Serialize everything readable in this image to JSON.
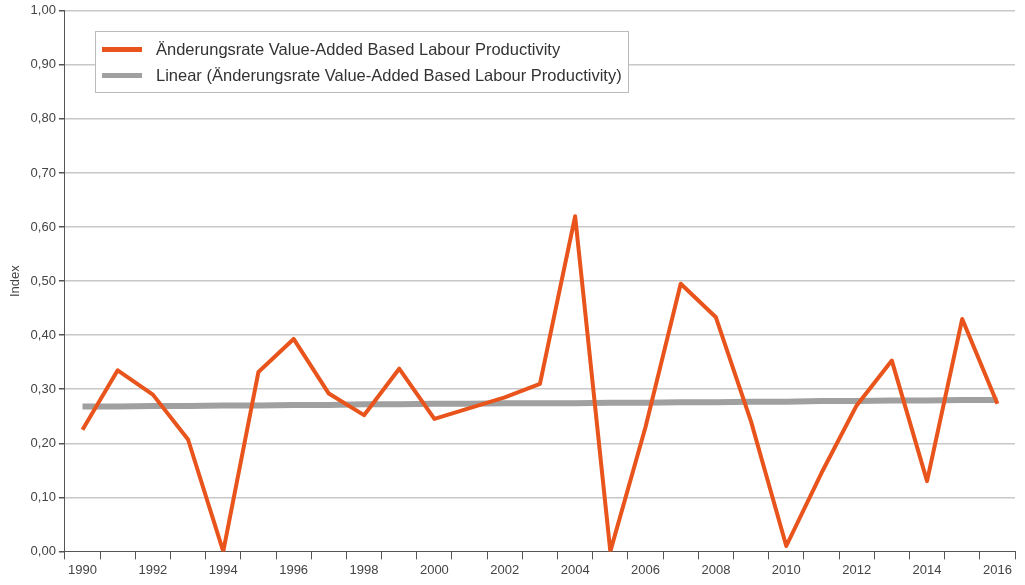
{
  "chart_data": {
    "type": "line",
    "ylabel": "Index",
    "categories": [
      "1990",
      null,
      "1992",
      null,
      "1994",
      null,
      "1996",
      null,
      "1998",
      null,
      "2000",
      null,
      "2002",
      null,
      "2004",
      null,
      "2006",
      null,
      "2008",
      null,
      "2010",
      null,
      "2012",
      null,
      "2014",
      null,
      "2016"
    ],
    "series": [
      {
        "name": "Änderungsrate Value-Added Based Labour Productivity",
        "color": "#e8541b",
        "values": [
          0.225,
          0.335,
          0.29,
          0.207,
          0.0,
          0.332,
          0.393,
          0.292,
          0.252,
          0.338,
          0.245,
          0.265,
          0.285,
          0.31,
          0.62,
          0.0,
          0.23,
          0.495,
          0.433,
          0.24,
          0.01,
          0.145,
          0.27,
          0.353,
          0.13,
          0.43,
          0.273
        ]
      },
      {
        "name": "Linear (Änderungsrate Value-Added Based Labour Productivity)",
        "color": "#a0a0a0",
        "type": "line",
        "values": [
          0.268,
          0.268,
          0.269,
          0.269,
          0.27,
          0.27,
          0.271,
          0.271,
          0.272,
          0.272,
          0.273,
          0.273,
          0.274,
          0.274,
          0.274,
          0.275,
          0.275,
          0.276,
          0.276,
          0.277,
          0.277,
          0.278,
          0.278,
          0.279,
          0.279,
          0.28,
          0.28
        ]
      }
    ],
    "ylim": [
      0,
      1
    ],
    "yticks": [
      {
        "value": 0,
        "label": "0,00"
      },
      {
        "value": 0.1,
        "label": "0,10"
      },
      {
        "value": 0.2,
        "label": "0,20"
      },
      {
        "value": 0.3,
        "label": "0,30"
      },
      {
        "value": 0.4,
        "label": "0,40"
      },
      {
        "value": 0.5,
        "label": "0,50"
      },
      {
        "value": 0.6,
        "label": "0,60"
      },
      {
        "value": 0.7,
        "label": "0,70"
      },
      {
        "value": 0.8,
        "label": "0,80"
      },
      {
        "value": 0.9,
        "label": "0,90"
      },
      {
        "value": 1,
        "label": "1,00"
      }
    ],
    "grid": "y",
    "legend": "top left",
    "marker": "none"
  }
}
